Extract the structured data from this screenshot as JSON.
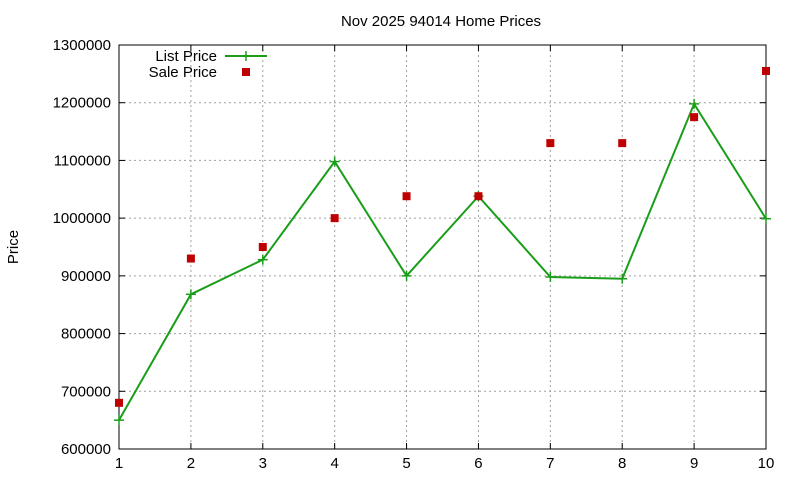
{
  "chart_data": {
    "type": "line",
    "title": "Nov 2025 94014 Home Prices",
    "xlabel": "",
    "ylabel": "Price",
    "x": [
      1,
      2,
      3,
      4,
      5,
      6,
      7,
      8,
      9,
      10
    ],
    "xlim": [
      1,
      10
    ],
    "ylim": [
      600000,
      1300000
    ],
    "xticks": [
      1,
      2,
      3,
      4,
      5,
      6,
      7,
      8,
      9,
      10
    ],
    "yticks": [
      600000,
      700000,
      800000,
      900000,
      1000000,
      1100000,
      1200000,
      1300000
    ],
    "grid": true,
    "legend_position": "top-left",
    "series": [
      {
        "name": "List Price",
        "style": "linespoints",
        "marker": "plus",
        "color": "#1a9e1a",
        "values": [
          650000,
          868000,
          928000,
          1098000,
          900000,
          1038000,
          898000,
          895000,
          1198000,
          999000
        ]
      },
      {
        "name": "Sale Price",
        "style": "points",
        "marker": "square",
        "color": "#c00000",
        "values": [
          680000,
          930000,
          950000,
          1000000,
          1038000,
          1038000,
          1130000,
          1130000,
          1175000,
          1255000
        ]
      }
    ]
  }
}
